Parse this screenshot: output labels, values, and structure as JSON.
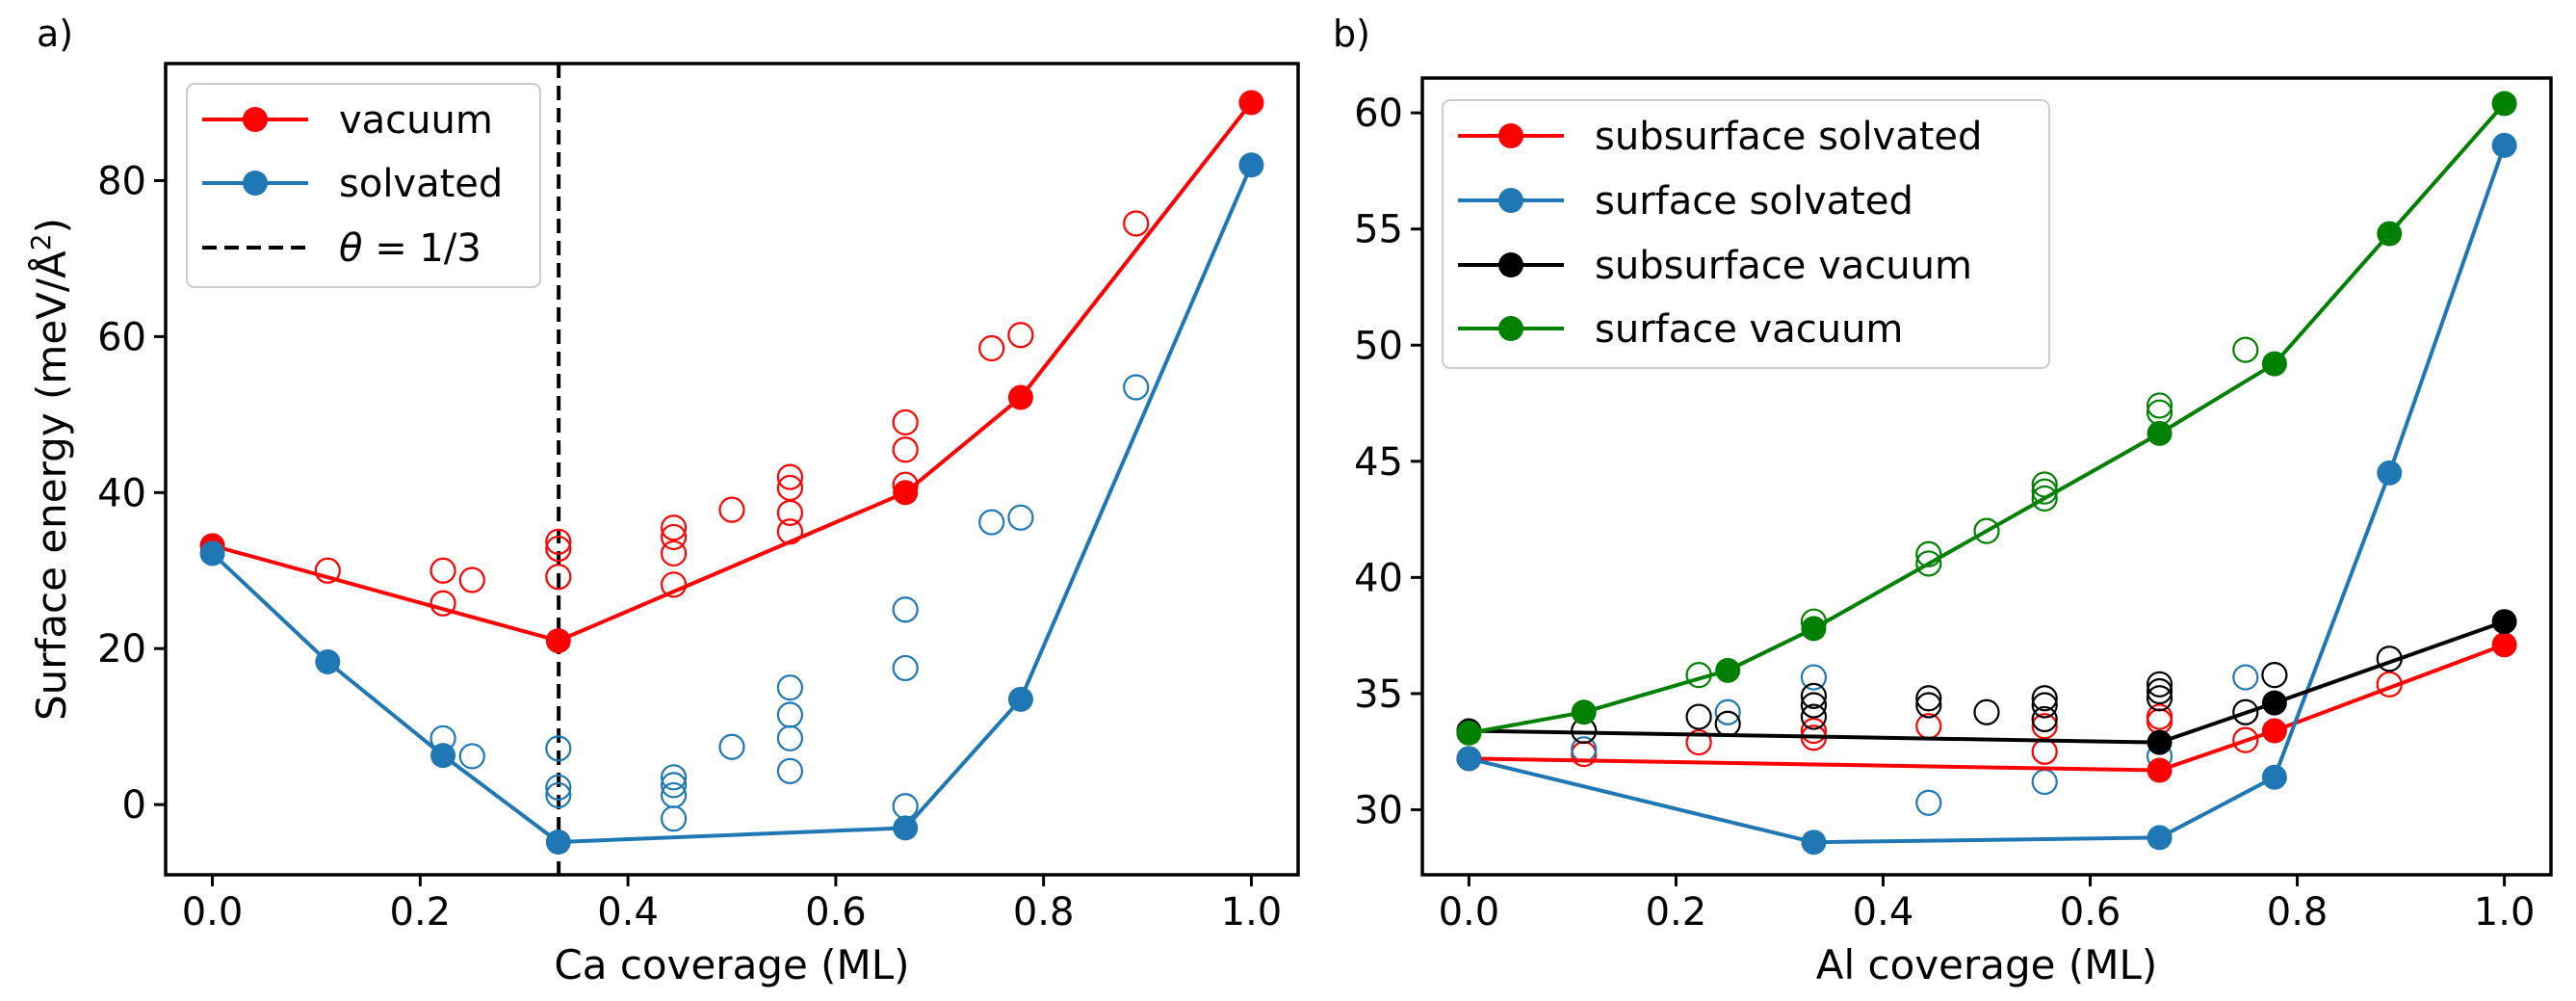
{
  "chart_data": [
    {
      "type": "scatter",
      "panel_label": "a)",
      "title": "",
      "xlabel": "Ca coverage (ML)",
      "ylabel_prefix": "Surface energy (meV/",
      "ylabel_unit": "Å",
      "ylabel_exp": "2",
      "ylabel_suffix": ")",
      "xlim": [
        -0.045,
        1.045
      ],
      "ylim": [
        -9,
        95
      ],
      "xticks": [
        0.0,
        0.2,
        0.4,
        0.6,
        0.8,
        1.0
      ],
      "xtick_labels": [
        "0.0",
        "0.2",
        "0.4",
        "0.6",
        "0.8",
        "1.0"
      ],
      "yticks": [
        0,
        20,
        40,
        60,
        80
      ],
      "ytick_labels": [
        "0",
        "20",
        "40",
        "60",
        "80"
      ],
      "legend_position": "top-left",
      "vline": {
        "x": 0.3333,
        "label_prefix": "θ",
        "label_suffix": " = 1/3"
      },
      "series": [
        {
          "name": "vacuum",
          "color": "#ff0000",
          "hull_x": [
            0.0,
            0.333,
            0.667,
            0.778,
            1.0
          ],
          "hull_y": [
            33.2,
            21.0,
            40.0,
            52.2,
            90.0
          ],
          "scatter_x": [
            0.111,
            0.222,
            0.222,
            0.25,
            0.333,
            0.333,
            0.333,
            0.444,
            0.444,
            0.444,
            0.444,
            0.5,
            0.556,
            0.556,
            0.556,
            0.556,
            0.667,
            0.667,
            0.667,
            0.75,
            0.778,
            0.889
          ],
          "scatter_y": [
            30.0,
            30.0,
            25.8,
            28.8,
            33.7,
            32.8,
            29.2,
            35.5,
            34.3,
            32.2,
            28.2,
            37.8,
            42.0,
            40.6,
            37.4,
            35.0,
            49.0,
            45.5,
            41.0,
            58.5,
            60.2,
            74.5
          ]
        },
        {
          "name": "solvated",
          "color": "#1f77b4",
          "hull_x": [
            0.0,
            0.111,
            0.222,
            0.333,
            0.667,
            0.778,
            1.0
          ],
          "hull_y": [
            32.2,
            18.3,
            6.3,
            -4.8,
            -3.0,
            13.5,
            82.0
          ],
          "scatter_x": [
            0.222,
            0.25,
            0.333,
            0.333,
            0.333,
            0.444,
            0.444,
            0.444,
            0.444,
            0.5,
            0.556,
            0.556,
            0.556,
            0.556,
            0.667,
            0.667,
            0.667,
            0.75,
            0.778,
            0.889
          ],
          "scatter_y": [
            8.5,
            6.2,
            7.2,
            2.2,
            1.2,
            3.5,
            2.5,
            1.2,
            -1.8,
            7.4,
            15.0,
            11.5,
            8.5,
            4.3,
            25.0,
            17.5,
            -0.2,
            36.2,
            36.8,
            53.5
          ]
        }
      ]
    },
    {
      "type": "scatter",
      "panel_label": "b)",
      "title": "",
      "xlabel": "Al coverage (ML)",
      "ylabel": "",
      "xlim": [
        -0.045,
        1.045
      ],
      "ylim": [
        27.2,
        61.5
      ],
      "xticks": [
        0.0,
        0.2,
        0.4,
        0.6,
        0.8,
        1.0
      ],
      "xtick_labels": [
        "0.0",
        "0.2",
        "0.4",
        "0.6",
        "0.8",
        "1.0"
      ],
      "yticks": [
        30,
        35,
        40,
        45,
        50,
        55,
        60
      ],
      "ytick_labels": [
        "30",
        "35",
        "40",
        "45",
        "50",
        "55",
        "60"
      ],
      "legend_position": "top-left",
      "series": [
        {
          "name": "subsurface solvated",
          "color": "#ff0000",
          "hull_x": [
            0.0,
            0.667,
            0.778,
            1.0
          ],
          "hull_y": [
            32.2,
            31.7,
            33.4,
            37.1
          ],
          "scatter_x": [
            0.111,
            0.222,
            0.333,
            0.333,
            0.444,
            0.556,
            0.556,
            0.667,
            0.667,
            0.75,
            0.889
          ],
          "scatter_y": [
            32.4,
            32.9,
            33.1,
            33.4,
            33.6,
            32.5,
            33.6,
            34.0,
            33.8,
            33.0,
            35.4
          ]
        },
        {
          "name": "surface solvated",
          "color": "#1f77b4",
          "hull_x": [
            0.0,
            0.333,
            0.667,
            0.778,
            0.889,
            1.0
          ],
          "hull_y": [
            32.2,
            28.6,
            28.8,
            31.4,
            44.5,
            58.6
          ],
          "scatter_x": [
            0.111,
            0.25,
            0.333,
            0.444,
            0.556,
            0.667,
            0.75
          ],
          "scatter_y": [
            32.6,
            34.2,
            35.7,
            30.3,
            31.2,
            32.3,
            35.7
          ]
        },
        {
          "name": "subsurface vacuum",
          "color": "#000000",
          "hull_x": [
            0.0,
            0.667,
            0.778,
            1.0
          ],
          "hull_y": [
            33.4,
            32.9,
            34.6,
            38.1
          ],
          "scatter_x": [
            0.111,
            0.222,
            0.25,
            0.333,
            0.333,
            0.333,
            0.444,
            0.444,
            0.5,
            0.556,
            0.556,
            0.556,
            0.667,
            0.667,
            0.667,
            0.75,
            0.778,
            0.889
          ],
          "scatter_y": [
            33.4,
            34.0,
            33.7,
            34.9,
            34.5,
            34.0,
            34.8,
            34.5,
            34.2,
            34.8,
            34.5,
            33.9,
            35.4,
            35.1,
            34.8,
            34.2,
            35.8,
            36.5
          ]
        },
        {
          "name": "surface vacuum",
          "color": "#008000",
          "hull_x": [
            0.0,
            0.111,
            0.25,
            0.333,
            0.667,
            0.778,
            0.889,
            1.0
          ],
          "hull_y": [
            33.3,
            34.2,
            36.0,
            37.8,
            46.2,
            49.2,
            54.8,
            60.4
          ],
          "scatter_x": [
            0.222,
            0.333,
            0.444,
            0.444,
            0.5,
            0.556,
            0.556,
            0.556,
            0.667,
            0.667,
            0.75
          ],
          "scatter_y": [
            35.8,
            38.1,
            40.6,
            41.0,
            42.0,
            43.4,
            43.7,
            44.0,
            47.1,
            47.4,
            49.8
          ]
        }
      ]
    }
  ]
}
